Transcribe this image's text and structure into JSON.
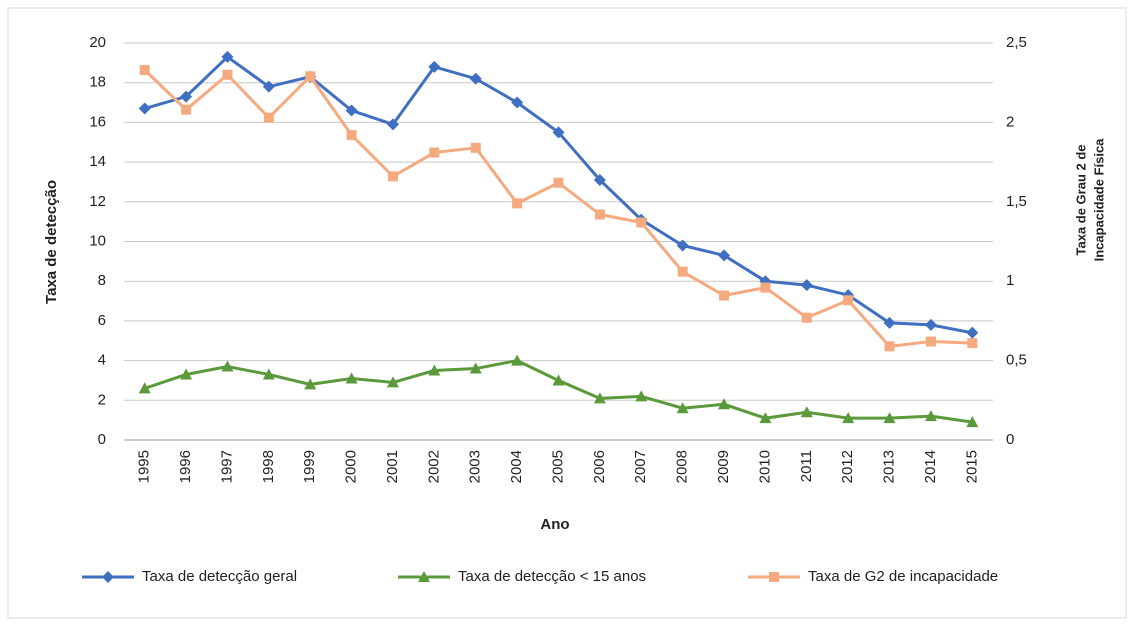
{
  "chart_data": {
    "type": "line",
    "xlabel": "Ano",
    "ylabel": "Taxa de detecção",
    "y2label": [
      "Taxa de Grau 2 de",
      "Incapacidade Física"
    ],
    "categories": [
      "1995",
      "1996",
      "1997",
      "1998",
      "1999",
      "2000",
      "2001",
      "2002",
      "2003",
      "2004",
      "2005",
      "2006",
      "2007",
      "2008",
      "2009",
      "2010",
      "2011",
      "2012",
      "2013",
      "2014",
      "2015"
    ],
    "series": [
      {
        "name": "Taxa de detecção geral",
        "color": "#3f6fc0",
        "marker": "diamond",
        "values": [
          16.7,
          17.3,
          19.3,
          17.8,
          18.3,
          16.6,
          15.9,
          18.8,
          18.2,
          17.0,
          15.5,
          13.1,
          11.1,
          9.8,
          9.3,
          8.0,
          7.8,
          7.3,
          5.9,
          5.8,
          5.4
        ]
      },
      {
        "name": "Taxa de detecção < 15 anos",
        "color": "#5a9a3a",
        "marker": "triangle",
        "values": [
          2.6,
          3.3,
          3.7,
          3.3,
          2.8,
          3.1,
          2.9,
          3.5,
          3.6,
          4.0,
          3.0,
          2.1,
          2.2,
          1.6,
          1.8,
          1.1,
          1.4,
          1.1,
          1.1,
          1.2,
          0.9
        ]
      },
      {
        "name": "Taxa de G2 de incapacidade",
        "color": "#f5a97e",
        "marker": "square",
        "axis": "y2",
        "values": [
          2.33,
          2.08,
          2.3,
          2.03,
          2.29,
          1.92,
          1.66,
          1.81,
          1.84,
          1.49,
          1.62,
          1.42,
          1.37,
          1.06,
          0.91,
          0.96,
          0.77,
          0.88,
          0.59,
          0.62,
          0.61
        ]
      }
    ],
    "ylim": [
      0,
      20
    ],
    "yticks": [
      0,
      2,
      4,
      6,
      8,
      10,
      12,
      14,
      16,
      18,
      20
    ],
    "y2lim": [
      0,
      2.5
    ],
    "y2ticks": [
      0,
      {
        "value": 0.5,
        "label": "0,5"
      },
      1,
      {
        "value": 1.5,
        "label": "1,5"
      },
      2,
      {
        "value": 2.5,
        "label": "2,5"
      }
    ],
    "grid": true,
    "legend": "bottom"
  }
}
